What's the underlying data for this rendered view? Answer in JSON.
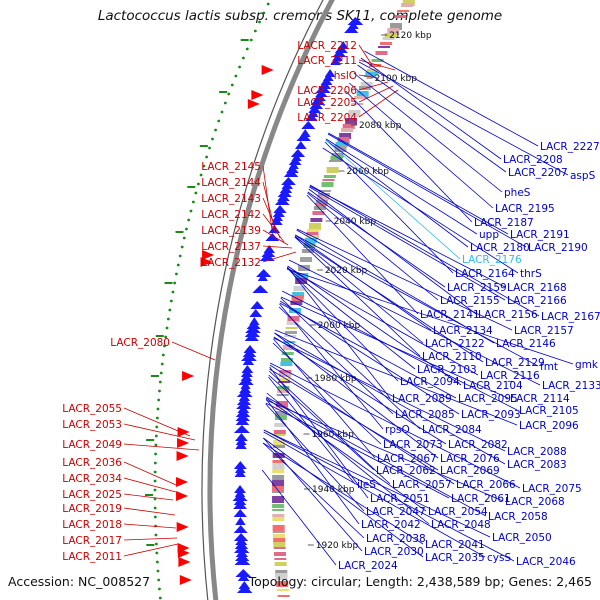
{
  "title": "Lactococcus lactis subsp. cremoris SK11, complete genome",
  "accession": "Accession: NC_008527",
  "topology": "Topology: circular; Length: 2,438,589 bp; Genes: 2,465",
  "colors": {
    "forward_arrow": "#ff0000",
    "reverse_arrow": "#1a1aff",
    "left_label": "#cc0000",
    "right_label": "#0000cc",
    "highlight_label": "#33bbee",
    "backbone": "#888888",
    "gc_dots": "#1a8a1a"
  },
  "kbp_ticks": [
    "2120 kbp",
    "2100 kbp",
    "2080 kbp",
    "2060 kbp",
    "2040 kbp",
    "2020 kbp",
    "2000 kbp",
    "1980 kbp",
    "1960 kbp",
    "1940 kbp",
    "1920 kbp"
  ],
  "left_labels": [
    "LACR_2212",
    "LACR_2211",
    "hslO",
    "LACR_2206",
    "LACR_2205",
    "LACR_2204",
    "LACR_2145",
    "LACR_2144",
    "LACR_2143",
    "LACR_2142",
    "LACR_2139",
    "LACR_2137",
    "LACR_2132",
    "LACR_2080",
    "LACR_2055",
    "LACR_2053",
    "LACR_2049",
    "LACR_2036",
    "LACR_2034",
    "LACR_2025",
    "LACR_2019",
    "LACR_2018",
    "LACR_2017",
    "LACR_2011"
  ],
  "right_labels": [
    "LACR_2227",
    "LACR_2208",
    "LACR_2207",
    "aspS",
    "pheS",
    "LACR_2195",
    "LACR_2187",
    "upp",
    "LACR_2191",
    "LACR_2180",
    "LACR_2190",
    "LACR_2176",
    "thrS",
    "LACR_2164",
    "LACR_2159",
    "LACR_2168",
    "LACR_2155",
    "LACR_2166",
    "LACR_2141",
    "LACR_2156",
    "LACR_2167",
    "LACR_2134",
    "LACR_2157",
    "LACR_2122",
    "LACR_2146",
    "LACR_2110",
    "LACR_2129",
    "fmt",
    "gmk",
    "LACR_2103",
    "LACR_2116",
    "LACR_2094",
    "LACR_2104",
    "LACR_2133",
    "LACR_2089",
    "LACR_2095",
    "LACR_2114",
    "LACR_2085",
    "LACR_2093",
    "LACR_2105",
    "rpsO",
    "LACR_2084",
    "LACR_2096",
    "LACR_2073",
    "LACR_2082",
    "LACR_2088",
    "LACR_2067",
    "LACR_2076",
    "LACR_2083",
    "LACR_2062",
    "LACR_2069",
    "ileS",
    "LACR_2057",
    "LACR_2066",
    "LACR_2075",
    "LACR_2051",
    "LACR_2061",
    "LACR_2068",
    "LACR_2047",
    "LACR_2054",
    "LACR_2058",
    "LACR_2042",
    "LACR_2048",
    "LACR_2038",
    "LACR_2041",
    "LACR_2050",
    "LACR_2030",
    "LACR_2035",
    "cysS",
    "LACR_2046",
    "LACR_2024"
  ]
}
